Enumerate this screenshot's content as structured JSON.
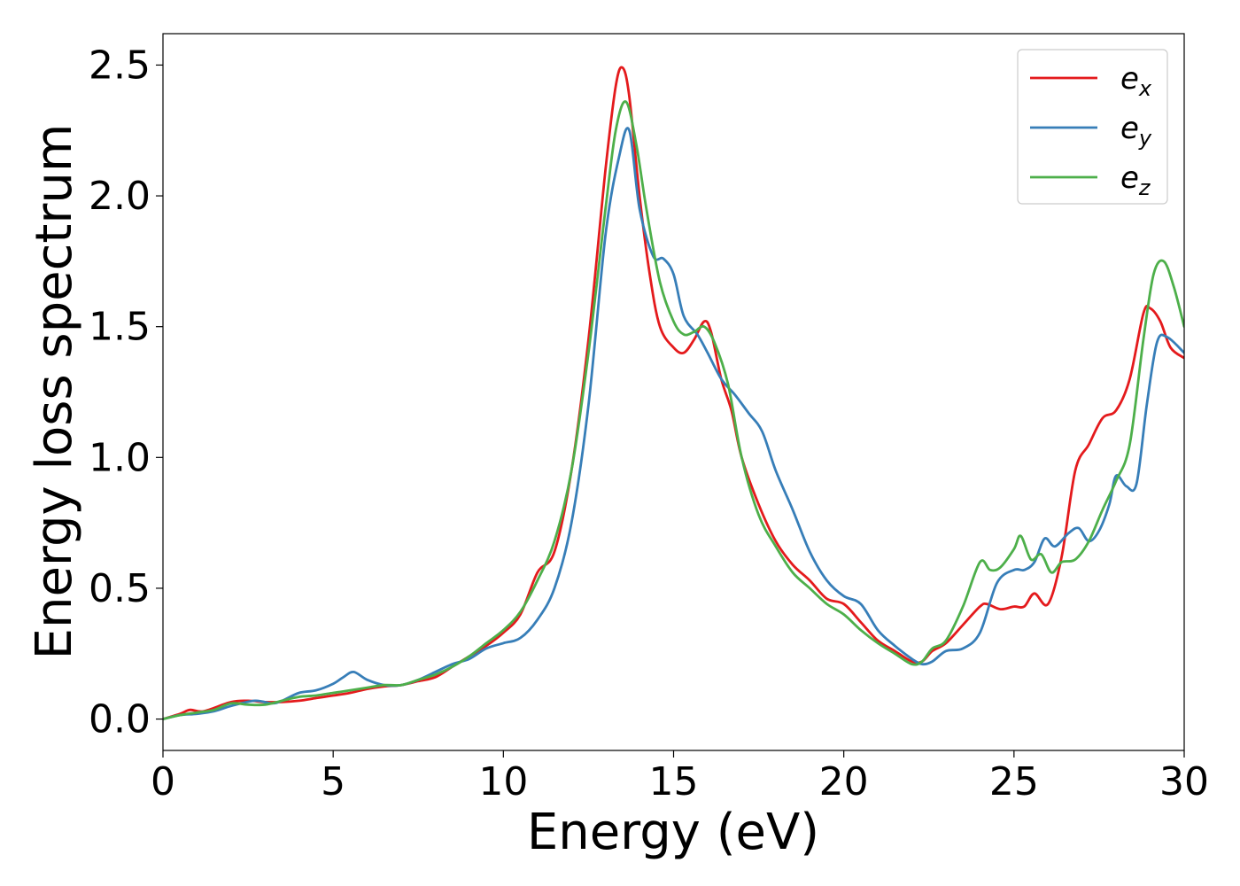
{
  "chart_data": {
    "type": "line",
    "title": "",
    "xlabel": "Energy (eV)",
    "ylabel": "Energy loss spectrum",
    "xlim": [
      0,
      30
    ],
    "ylim": [
      -0.12,
      2.62
    ],
    "xticks": [
      0,
      5,
      10,
      15,
      20,
      25,
      30
    ],
    "xtick_labels": [
      "0",
      "5",
      "10",
      "15",
      "20",
      "25",
      "30"
    ],
    "yticks": [
      0.0,
      0.5,
      1.0,
      1.5,
      2.0,
      2.5
    ],
    "ytick_labels": [
      "0.0",
      "0.5",
      "1.0",
      "1.5",
      "2.0",
      "2.5"
    ],
    "grid": false,
    "legend_position": "top-right",
    "series": [
      {
        "name": "e_x",
        "label_base": "e",
        "label_sub": "x",
        "color": "#e41a1c",
        "x": [
          0,
          0.5,
          0.8,
          1.2,
          2.0,
          2.5,
          3.0,
          3.5,
          4.0,
          4.5,
          5.0,
          5.5,
          6.0,
          6.5,
          7.0,
          7.5,
          8.0,
          8.5,
          9.0,
          9.5,
          10.0,
          10.5,
          11.0,
          11.5,
          12.0,
          12.5,
          13.0,
          13.3,
          13.5,
          13.7,
          14.0,
          14.3,
          14.6,
          15.0,
          15.3,
          15.6,
          15.9,
          16.1,
          16.4,
          16.7,
          17.0,
          17.5,
          18.0,
          18.5,
          19.0,
          19.5,
          20.0,
          20.5,
          21.0,
          21.5,
          22.0,
          22.3,
          22.6,
          23.0,
          23.5,
          24.0,
          24.2,
          24.6,
          25.0,
          25.3,
          25.6,
          26.0,
          26.4,
          26.8,
          27.2,
          27.6,
          28.0,
          28.4,
          28.8,
          29.0,
          29.3,
          29.6,
          30.0
        ],
        "y": [
          0.0,
          0.02,
          0.035,
          0.03,
          0.065,
          0.07,
          0.065,
          0.065,
          0.07,
          0.08,
          0.09,
          0.1,
          0.115,
          0.125,
          0.13,
          0.145,
          0.16,
          0.2,
          0.24,
          0.28,
          0.33,
          0.4,
          0.56,
          0.64,
          0.95,
          1.45,
          2.1,
          2.42,
          2.49,
          2.38,
          2.0,
          1.7,
          1.5,
          1.42,
          1.4,
          1.45,
          1.52,
          1.48,
          1.3,
          1.18,
          1.0,
          0.82,
          0.68,
          0.59,
          0.53,
          0.46,
          0.44,
          0.37,
          0.3,
          0.26,
          0.22,
          0.22,
          0.26,
          0.29,
          0.36,
          0.43,
          0.44,
          0.42,
          0.43,
          0.43,
          0.48,
          0.44,
          0.62,
          0.95,
          1.05,
          1.15,
          1.18,
          1.3,
          1.55,
          1.57,
          1.52,
          1.42,
          1.38
        ]
      },
      {
        "name": "e_y",
        "label_base": "e",
        "label_sub": "y",
        "color": "#377eb8",
        "x": [
          0,
          0.5,
          1.0,
          1.5,
          2.0,
          2.7,
          3.2,
          3.5,
          4.0,
          4.5,
          5.0,
          5.3,
          5.6,
          6.0,
          6.5,
          7.0,
          7.5,
          8.0,
          8.5,
          9.0,
          9.5,
          10.0,
          10.5,
          11.0,
          11.5,
          12.0,
          12.5,
          13.0,
          13.4,
          13.7,
          14.0,
          14.4,
          14.7,
          15.0,
          15.3,
          15.7,
          16.0,
          16.4,
          16.8,
          17.2,
          17.6,
          18.0,
          18.5,
          19.0,
          19.5,
          20.0,
          20.5,
          21.0,
          21.5,
          22.0,
          22.3,
          22.6,
          23.0,
          23.5,
          24.0,
          24.5,
          25.0,
          25.3,
          25.6,
          25.9,
          26.2,
          26.6,
          26.9,
          27.2,
          27.5,
          27.8,
          28.0,
          28.3,
          28.6,
          28.9,
          29.2,
          29.5,
          30.0
        ],
        "y": [
          0.0,
          0.015,
          0.02,
          0.03,
          0.05,
          0.07,
          0.06,
          0.07,
          0.1,
          0.11,
          0.135,
          0.16,
          0.18,
          0.15,
          0.13,
          0.13,
          0.15,
          0.18,
          0.21,
          0.23,
          0.27,
          0.29,
          0.31,
          0.38,
          0.5,
          0.75,
          1.2,
          1.85,
          2.15,
          2.25,
          1.95,
          1.77,
          1.76,
          1.7,
          1.54,
          1.47,
          1.4,
          1.3,
          1.24,
          1.17,
          1.1,
          0.95,
          0.8,
          0.64,
          0.53,
          0.47,
          0.44,
          0.34,
          0.28,
          0.23,
          0.21,
          0.22,
          0.26,
          0.27,
          0.33,
          0.52,
          0.57,
          0.57,
          0.6,
          0.69,
          0.66,
          0.71,
          0.73,
          0.68,
          0.72,
          0.82,
          0.93,
          0.89,
          0.9,
          1.2,
          1.44,
          1.46,
          1.4
        ]
      },
      {
        "name": "e_z",
        "label_base": "e",
        "label_sub": "z",
        "color": "#4daf4a",
        "x": [
          0,
          0.5,
          1.0,
          1.5,
          2.0,
          2.5,
          3.0,
          3.5,
          4.0,
          4.5,
          5.0,
          5.5,
          6.0,
          6.5,
          7.0,
          7.5,
          8.0,
          8.5,
          9.0,
          9.5,
          10.0,
          10.5,
          11.0,
          11.5,
          12.0,
          12.5,
          13.0,
          13.3,
          13.6,
          13.9,
          14.2,
          14.6,
          15.0,
          15.3,
          15.6,
          15.9,
          16.2,
          16.6,
          17.0,
          17.5,
          18.0,
          18.5,
          19.0,
          19.5,
          20.0,
          20.5,
          21.0,
          21.5,
          22.0,
          22.3,
          22.6,
          23.0,
          23.5,
          24.0,
          24.3,
          24.6,
          25.0,
          25.2,
          25.5,
          25.8,
          26.1,
          26.4,
          26.8,
          27.2,
          27.6,
          28.0,
          28.4,
          28.8,
          29.1,
          29.4,
          29.7,
          30.0
        ],
        "y": [
          0.0,
          0.015,
          0.025,
          0.035,
          0.06,
          0.055,
          0.055,
          0.07,
          0.085,
          0.09,
          0.1,
          0.11,
          0.12,
          0.13,
          0.13,
          0.15,
          0.17,
          0.2,
          0.24,
          0.29,
          0.34,
          0.41,
          0.53,
          0.68,
          0.95,
          1.4,
          1.95,
          2.25,
          2.36,
          2.2,
          1.95,
          1.67,
          1.52,
          1.47,
          1.48,
          1.5,
          1.44,
          1.28,
          1.0,
          0.78,
          0.66,
          0.56,
          0.5,
          0.44,
          0.4,
          0.34,
          0.29,
          0.25,
          0.21,
          0.22,
          0.27,
          0.3,
          0.43,
          0.6,
          0.57,
          0.58,
          0.65,
          0.7,
          0.61,
          0.63,
          0.56,
          0.6,
          0.61,
          0.68,
          0.8,
          0.91,
          1.05,
          1.45,
          1.7,
          1.75,
          1.65,
          1.5
        ]
      }
    ]
  }
}
